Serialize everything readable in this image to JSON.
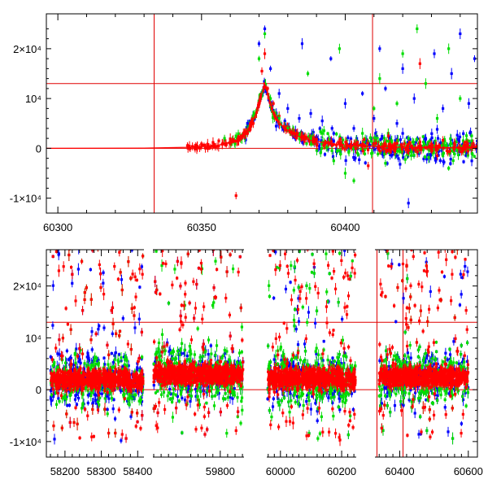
{
  "chart_data": [
    {
      "type": "scatter",
      "title": "",
      "xlabel": "",
      "ylabel": "",
      "xlim": [
        60296,
        60446
      ],
      "ylim": [
        -13000,
        27000
      ],
      "x_ticks": [
        60300,
        60350,
        60400
      ],
      "x_tick_labels": [
        "60300",
        "60350",
        "60400"
      ],
      "y_ticks": [
        -10000,
        0,
        10000,
        20000
      ],
      "y_tick_labels": [
        "-1×10⁴",
        "0",
        "10⁴",
        "2×10⁴"
      ],
      "reference_lines": {
        "vertical": [
          60333.5,
          60409.5
        ],
        "horizontal": [
          0,
          13000
        ]
      },
      "model_curve": {
        "color": "#ff0000",
        "x": [
          60296,
          60330,
          60345,
          60355,
          60362,
          60366,
          60369,
          60371,
          60372,
          60373,
          60375,
          60378,
          60382,
          60388,
          60395,
          60405,
          60420,
          60446
        ],
        "y": [
          0,
          50,
          200,
          500,
          1500,
          3500,
          7000,
          11000,
          13000,
          11000,
          7000,
          4500,
          2800,
          1600,
          900,
          500,
          200,
          80
        ]
      },
      "series": [
        {
          "name": "",
          "color": "#ff0000",
          "points": [
            [
              60348,
              600
            ],
            [
              60350,
              900
            ],
            [
              60352,
              700
            ],
            [
              60354,
              1200
            ],
            [
              60356,
              1500
            ],
            [
              60358,
              1600
            ],
            [
              60360,
              1900
            ],
            [
              60362,
              -9500
            ],
            [
              60364,
              2200
            ],
            [
              60366,
              3000
            ],
            [
              60368,
              5000
            ],
            [
              60370,
              9000
            ],
            [
              60371,
              15500
            ],
            [
              60372,
              19000
            ],
            [
              60373,
              12000
            ],
            [
              60375,
              9000
            ],
            [
              60377,
              6500
            ],
            [
              60380,
              4200
            ],
            [
              60383,
              3000
            ],
            [
              60386,
              2300
            ],
            [
              60390,
              1800
            ],
            [
              60394,
              1200
            ],
            [
              60398,
              1000
            ],
            [
              60402,
              800
            ],
            [
              60406,
              700
            ],
            [
              60410,
              900
            ],
            [
              60414,
              500
            ],
            [
              60418,
              1000
            ],
            [
              60422,
              800
            ],
            [
              60426,
              1300
            ],
            [
              60430,
              900
            ],
            [
              60434,
              1600
            ],
            [
              60438,
              1000
            ],
            [
              60442,
              1200
            ],
            [
              60408,
              -3500
            ],
            [
              60426,
              17000
            ],
            [
              60415,
              2500
            ],
            [
              60432,
              -1500
            ]
          ]
        },
        {
          "name": "",
          "color": "#00dd00",
          "points": [
            [
              60358,
              2000
            ],
            [
              60362,
              2500
            ],
            [
              60366,
              4500
            ],
            [
              60368,
              6500
            ],
            [
              60370,
              18000
            ],
            [
              60372,
              23000
            ],
            [
              60374,
              10000
            ],
            [
              60377,
              6000
            ],
            [
              60380,
              4000
            ],
            [
              60384,
              2500
            ],
            [
              60388,
              2000
            ],
            [
              60392,
              3000
            ],
            [
              60396,
              -2500
            ],
            [
              60400,
              -5000
            ],
            [
              60403,
              -6500
            ],
            [
              60406,
              3000
            ],
            [
              60410,
              8000
            ],
            [
              60414,
              -3000
            ],
            [
              60418,
              9000
            ],
            [
              60420,
              19000
            ],
            [
              60422,
              2000
            ],
            [
              60425,
              24000
            ],
            [
              60428,
              13000
            ],
            [
              60432,
              6000
            ],
            [
              60436,
              -4000
            ],
            [
              60440,
              10000
            ],
            [
              60444,
              2500
            ],
            [
              60412,
              14000
            ],
            [
              60387,
              15000
            ],
            [
              60398,
              20000
            ],
            [
              60436,
              20000
            ]
          ]
        },
        {
          "name": "",
          "color": "#0000ff",
          "points": [
            [
              60366,
              5000
            ],
            [
              60370,
              21000
            ],
            [
              60372,
              24000
            ],
            [
              60374,
              16000
            ],
            [
              60377,
              11000
            ],
            [
              60380,
              8000
            ],
            [
              60384,
              6000
            ],
            [
              60388,
              7000
            ],
            [
              60392,
              5500
            ],
            [
              60396,
              3000
            ],
            [
              60400,
              9000
            ],
            [
              60403,
              4000
            ],
            [
              60406,
              11000
            ],
            [
              60410,
              6000
            ],
            [
              60414,
              12000
            ],
            [
              60418,
              5000
            ],
            [
              60420,
              3000
            ],
            [
              60424,
              10000
            ],
            [
              60428,
              2000
            ],
            [
              60431,
              19000
            ],
            [
              60434,
              8000
            ],
            [
              60437,
              15000
            ],
            [
              60440,
              23000
            ],
            [
              60443,
              9000
            ],
            [
              60445,
              18000
            ],
            [
              60422,
              -11000
            ],
            [
              60385,
              21000
            ],
            [
              60395,
              18000
            ],
            [
              60412,
              20000
            ],
            [
              60420,
              16000
            ]
          ]
        }
      ]
    },
    {
      "type": "scatter",
      "title": "",
      "xlabel": "",
      "ylabel": "",
      "note": "broken x-axis with four segments",
      "xlim": [
        58170,
        60610
      ],
      "ylim": [
        -13000,
        27000
      ],
      "x_ticks": [
        58200,
        58300,
        58400,
        59800,
        60000,
        60200,
        60400,
        60600
      ],
      "x_tick_labels": [
        "58200",
        "58300",
        "58400",
        "59800",
        "60000",
        "60200",
        "60400",
        "60600"
      ],
      "y_ticks": [
        -10000,
        0,
        10000,
        20000
      ],
      "y_tick_labels": [
        "-1×10⁴",
        "0",
        "10⁴",
        "2×10⁴"
      ],
      "reference_lines": {
        "vertical": [
          60333.5,
          60409.5
        ],
        "horizontal": [
          0,
          13000
        ]
      },
      "observing_seasons": [
        {
          "x_start": 58160,
          "x_end": 58415,
          "core_level": 2000,
          "spread": 7000
        },
        {
          "x_start": 59620,
          "x_end": 59862,
          "core_level": 3000,
          "spread": 7500
        },
        {
          "x_start": 59958,
          "x_end": 60245,
          "core_level": 2200,
          "spread": 7500
        },
        {
          "x_start": 60340,
          "x_end": 60600,
          "core_level": 2500,
          "spread": 7000
        }
      ],
      "series": [
        {
          "name": "",
          "color": "#0000ff"
        },
        {
          "name": "",
          "color": "#00dd00"
        },
        {
          "name": "",
          "color": "#ff0000"
        }
      ]
    }
  ]
}
